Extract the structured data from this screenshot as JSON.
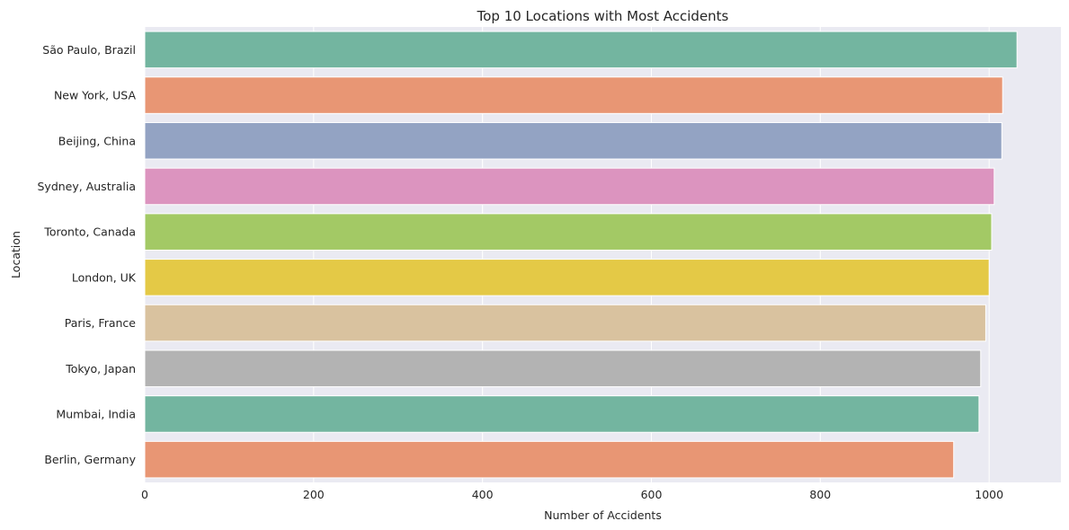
{
  "chart_data": {
    "type": "bar",
    "orientation": "horizontal",
    "title": "Top 10 Locations with Most Accidents",
    "xlabel": "Number of Accidents",
    "ylabel": "Location",
    "categories": [
      "São Paulo, Brazil",
      "New York, USA",
      "Beijing, China",
      "Sydney, Australia",
      "Toronto, Canada",
      "London, UK",
      "Paris, France",
      "Tokyo, Japan",
      "Mumbai, India",
      "Berlin, Germany"
    ],
    "values": [
      1033,
      1016,
      1015,
      1006,
      1003,
      1000,
      996,
      990,
      988,
      958
    ],
    "bar_colors": [
      "#73b5a0",
      "#e89674",
      "#93a3c3",
      "#dc94bf",
      "#a3c965",
      "#e4c946",
      "#d9c29f",
      "#b3b3b3",
      "#73b5a0",
      "#e89674"
    ],
    "xlim": [
      0,
      1085
    ],
    "xticks": [
      0,
      200,
      400,
      600,
      800,
      1000
    ],
    "grid": true,
    "background": "#eaeaf2",
    "grid_color": "#ffffff"
  }
}
